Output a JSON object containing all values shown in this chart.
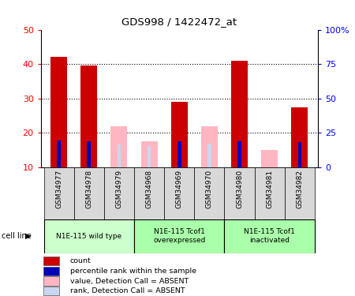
{
  "title": "GDS998 / 1422472_at",
  "categories": [
    "GSM34977",
    "GSM34978",
    "GSM34979",
    "GSM34968",
    "GSM34969",
    "GSM34970",
    "GSM34980",
    "GSM34981",
    "GSM34982"
  ],
  "count_values": [
    42,
    39.5,
    0,
    0,
    29,
    0,
    41,
    0,
    27.5
  ],
  "percentile_values": [
    19.5,
    19,
    0,
    15.5,
    19,
    0,
    19,
    0,
    18
  ],
  "absent_value_values": [
    0,
    0,
    22,
    17.5,
    0,
    22,
    0,
    15,
    0
  ],
  "absent_rank_values": [
    0,
    0,
    16.5,
    15.5,
    0,
    17,
    0,
    0,
    0
  ],
  "ylim_left": [
    10,
    50
  ],
  "ylim_right": [
    0,
    100
  ],
  "yticks_left": [
    10,
    20,
    30,
    40,
    50
  ],
  "yticks_right": [
    0,
    25,
    50,
    75,
    100
  ],
  "ytick_labels_left": [
    "10",
    "20",
    "30",
    "40",
    "50"
  ],
  "ytick_labels_right": [
    "0",
    "25",
    "50",
    "75",
    "100%"
  ],
  "color_count": "#cc0000",
  "color_percentile": "#0000bb",
  "color_absent_value": "#ffb6c1",
  "color_absent_rank": "#c8d8f0",
  "bar_width": 0.55,
  "bar_bottom": 10,
  "group_configs": [
    {
      "indices": [
        0,
        1,
        2
      ],
      "label": "N1E-115 wild type",
      "color": "#ccffcc"
    },
    {
      "indices": [
        3,
        4,
        5
      ],
      "label": "N1E-115 Tcof1\noverexpressed",
      "color": "#aaffaa"
    },
    {
      "indices": [
        6,
        7,
        8
      ],
      "label": "N1E-115 Tcof1\ninactivated",
      "color": "#aaffaa"
    }
  ],
  "legend_items": [
    {
      "label": "count",
      "color": "#cc0000"
    },
    {
      "label": "percentile rank within the sample",
      "color": "#0000bb"
    },
    {
      "label": "value, Detection Call = ABSENT",
      "color": "#ffb6c1"
    },
    {
      "label": "rank, Detection Call = ABSENT",
      "color": "#c8d8f0"
    }
  ],
  "grid_lines": [
    20,
    30,
    40
  ],
  "xlabel_cell_line": "cell line"
}
